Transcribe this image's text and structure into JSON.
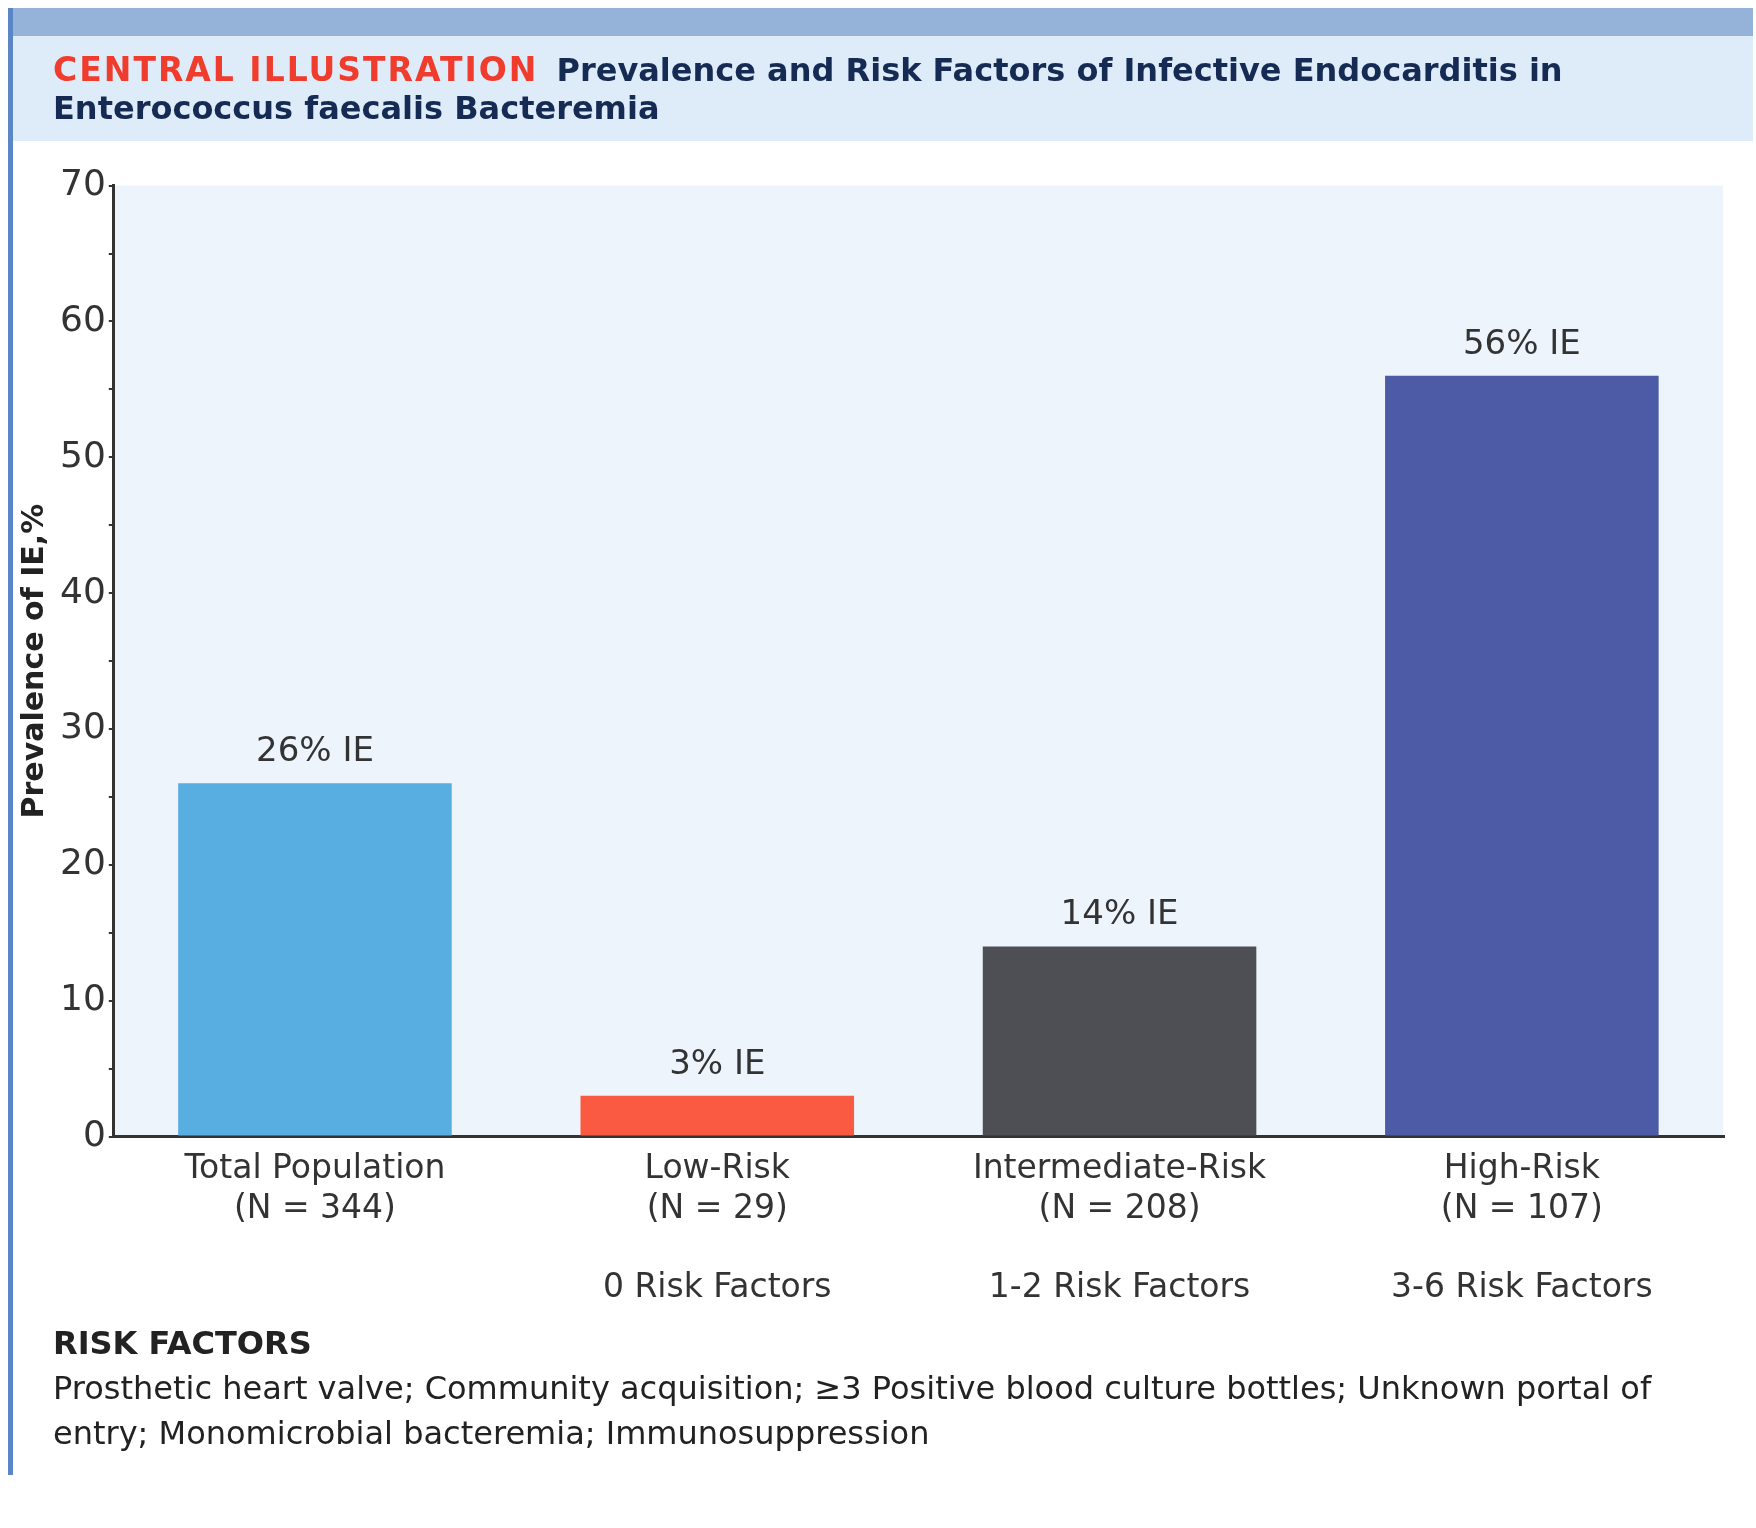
{
  "chart_data": {
    "type": "bar",
    "title": "Prevalence and Risk Factors of Infective Endocarditis in Enterococcus faecalis Bacteremia",
    "ylabel": "Prevalence of IE,%",
    "categories": [
      "Total Population\n(N = 344)",
      "Low-Risk\n(N = 29)\n\n0 Risk Factors",
      "Intermediate-Risk\n(N = 208)\n\n1-2 Risk Factors",
      "High-Risk\n(N = 107)\n\n3-6 Risk Factors"
    ],
    "values": [
      26,
      3,
      14,
      56
    ],
    "colors": [
      "#58aee0",
      "#fa5a42",
      "#4e4f55",
      "#4d5aa5"
    ],
    "value_labels": [
      "26% IE",
      "3% IE",
      "14% IE",
      "56% IE"
    ],
    "ylim": [
      0,
      70
    ],
    "yticks": [
      0,
      {
        "value": 5,
        "label": null
      },
      10,
      {
        "value": 15,
        "label": null
      },
      20,
      {
        "value": 25,
        "label": null
      },
      30,
      {
        "value": 35,
        "label": null
      },
      40,
      {
        "value": 45,
        "label": null
      },
      50,
      {
        "value": 55,
        "label": null
      },
      60,
      {
        "value": 65,
        "label": null
      },
      70
    ],
    "grid": false,
    "legend": false,
    "annotations": [
      "CENTRAL ILLUSTRATION",
      "RISK FACTORS",
      "Prosthetic heart valve; Community acquisition; ≥3 Positive blood culture bottles; Unknown portal of entry; Monomicrobial bacteremia; Immunosuppression"
    ]
  }
}
